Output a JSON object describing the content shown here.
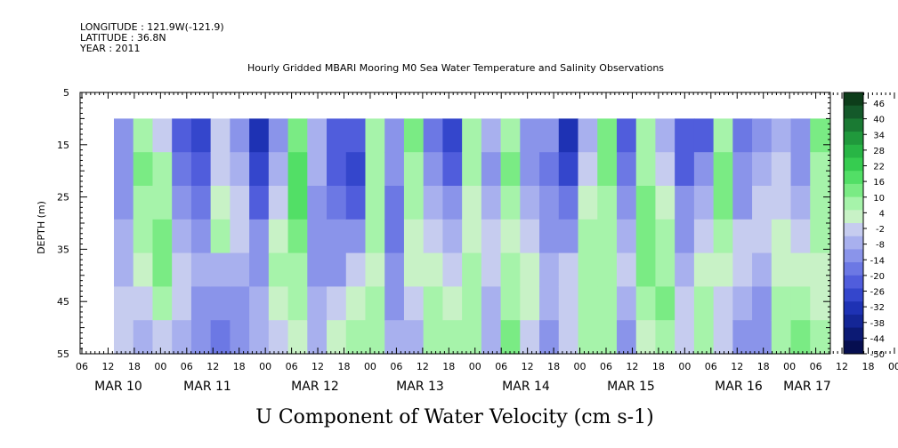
{
  "header": {
    "longitude": "LONGITUDE : 121.9W(-121.9)",
    "latitude": "LATITUDE : 36.8N",
    "year": "YEAR : 2011",
    "title": "Hourly Gridded MBARI Mooring M0 Sea Water Temperature and Salinity Observations"
  },
  "chart_data": {
    "type": "heatmap",
    "title": "U Component of Water Velocity (cm s-1)",
    "ylabel": "DEPTH (m)",
    "y_ticks": [
      "5",
      "15",
      "25",
      "35",
      "45",
      "55"
    ],
    "ylim": [
      55,
      5
    ],
    "y_inverted": true,
    "x_hour_ticks": [
      "06",
      "12",
      "18",
      "00",
      "06",
      "12",
      "18",
      "00",
      "06",
      "12",
      "18",
      "00",
      "06",
      "12",
      "18",
      "00",
      "06",
      "12",
      "18",
      "00",
      "06",
      "12",
      "18",
      "00",
      "06",
      "12",
      "18",
      "00",
      "06",
      "12",
      "18",
      "00",
      "06"
    ],
    "x_day_labels": [
      "MAR 10",
      "MAR 11",
      "MAR 12",
      "MAR 13",
      "MAR 14",
      "MAR 15",
      "MAR 16",
      "MAR 17"
    ],
    "data_depth_range": [
      10,
      55
    ],
    "colorbar": {
      "labels": [
        "46",
        "40",
        "34",
        "28",
        "22",
        "16",
        "10",
        "4",
        "-2",
        "-8",
        "-14",
        "-20",
        "-26",
        "-32",
        "-38",
        "-44",
        "-50"
      ],
      "range": [
        -50,
        50
      ],
      "colors": [
        "#0d3d1a",
        "#14592a",
        "#1a7a33",
        "#20993c",
        "#28b545",
        "#36cc50",
        "#52df66",
        "#7aeb84",
        "#a6f3aa",
        "#c8f2c6",
        "#c6ccef",
        "#a8b0ee",
        "#8a94ea",
        "#6c78e4",
        "#505ddc",
        "#3446cc",
        "#1e32b4",
        "#142696",
        "#0c1a74",
        "#060e50"
      ]
    },
    "columns": [
      [
        -14,
        -12,
        -10,
        -8,
        -6,
        -4,
        -2
      ],
      [
        10,
        12,
        8,
        6,
        4,
        -2,
        -6
      ],
      [
        -4,
        6,
        10,
        12,
        14,
        8,
        -2
      ],
      [
        -20,
        -18,
        -14,
        -8,
        -4,
        -2,
        -6
      ],
      [
        -26,
        -24,
        -18,
        -12,
        -8,
        -10,
        -14
      ],
      [
        -4,
        -2,
        4,
        6,
        -6,
        -12,
        -18
      ],
      [
        -14,
        -8,
        -4,
        -2,
        -6,
        -10,
        -14
      ],
      [
        -30,
        -28,
        -20,
        -14,
        -10,
        -8,
        -6
      ],
      [
        -10,
        -6,
        -2,
        4,
        6,
        2,
        -4
      ],
      [
        12,
        16,
        18,
        14,
        10,
        6,
        2
      ],
      [
        -8,
        -6,
        -10,
        -14,
        -12,
        -8,
        -6
      ],
      [
        -20,
        -22,
        -18,
        -14,
        -10,
        -4,
        2
      ],
      [
        -24,
        -26,
        -22,
        -12,
        -4,
        4,
        8
      ],
      [
        6,
        8,
        10,
        6,
        4,
        8,
        10
      ],
      [
        -10,
        -12,
        -16,
        -18,
        -14,
        -10,
        -6
      ],
      [
        14,
        10,
        6,
        4,
        2,
        -2,
        -6
      ],
      [
        -16,
        -12,
        -6,
        -2,
        4,
        6,
        8
      ],
      [
        -28,
        -20,
        -14,
        -8,
        -2,
        4,
        6
      ],
      [
        10,
        8,
        4,
        2,
        6,
        8,
        6
      ],
      [
        -6,
        -10,
        -8,
        -4,
        -2,
        -6,
        -8
      ],
      [
        10,
        12,
        8,
        4,
        6,
        10,
        12
      ],
      [
        -14,
        -10,
        -6,
        -2,
        2,
        4,
        -4
      ],
      [
        -12,
        -16,
        -14,
        -10,
        -6,
        -8,
        -10
      ],
      [
        -32,
        -26,
        -18,
        -10,
        -4,
        -2,
        -4
      ],
      [
        -8,
        -4,
        2,
        8,
        10,
        8,
        6
      ],
      [
        14,
        12,
        10,
        8,
        6,
        8,
        10
      ],
      [
        -20,
        -16,
        -10,
        -6,
        -2,
        -6,
        -10
      ],
      [
        8,
        10,
        12,
        14,
        12,
        8,
        4
      ],
      [
        -6,
        -4,
        4,
        8,
        10,
        12,
        10
      ],
      [
        -24,
        -20,
        -14,
        -10,
        -6,
        -2,
        -4
      ],
      [
        -20,
        -14,
        -8,
        -4,
        2,
        6,
        8
      ],
      [
        10,
        12,
        14,
        8,
        4,
        -2,
        -4
      ],
      [
        -18,
        -14,
        -10,
        -4,
        -2,
        -6,
        -10
      ],
      [
        -12,
        -8,
        -4,
        -2,
        -6,
        -10,
        -14
      ],
      [
        -6,
        -4,
        -2,
        2,
        4,
        6,
        8
      ],
      [
        -14,
        -10,
        -6,
        -2,
        2,
        10,
        14
      ],
      [
        12,
        10,
        8,
        6,
        4,
        2,
        6
      ]
    ]
  }
}
